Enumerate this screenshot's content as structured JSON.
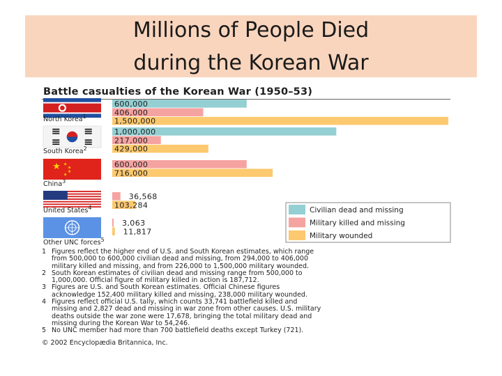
{
  "slide": {
    "title_line1": "Millions of People Died",
    "title_line2": "during the Korean War"
  },
  "chart_data": {
    "type": "bar",
    "orientation": "horizontal",
    "title": "Battle casualties of the Korean War (1950–53)",
    "categories": [
      "North Korea",
      "South Korea",
      "China",
      "United States",
      "Other UNC forces"
    ],
    "category_footnotes": [
      "1",
      "2",
      "3",
      "4",
      "5"
    ],
    "series": [
      {
        "name": "Civilian dead and missing",
        "color": "#93cfd3",
        "values": [
          600000,
          1000000,
          null,
          null,
          null
        ]
      },
      {
        "name": "Military killed and missing",
        "color": "#f5a3a1",
        "values": [
          406000,
          217000,
          600000,
          36568,
          3063
        ]
      },
      {
        "name": "Military wounded",
        "color": "#fcc96f",
        "values": [
          1500000,
          429000,
          716000,
          103284,
          11817
        ]
      }
    ],
    "value_labels": [
      [
        "600,000",
        "406,000",
        "1,500,000"
      ],
      [
        "1,000,000",
        "217,000",
        "429,000"
      ],
      [
        null,
        "600,000",
        "716,000"
      ],
      [
        null,
        "36,568",
        "103,284"
      ],
      [
        null,
        "3,063",
        "11,817"
      ]
    ],
    "legend_position": "bottom-right",
    "grid": false,
    "flag_icons": [
      "north-korea-flag-icon",
      "south-korea-flag-icon",
      "china-flag-icon",
      "united-states-flag-icon",
      "united-nations-flag-icon"
    ]
  },
  "notes": [
    {
      "num": "1",
      "lines": [
        "Figures reflect the higher end of U.S. and South Korean estimates, which range",
        "from 500,000 to 600,000 civilian dead and missing, from 294,000 to 406,000",
        "military killed and missing, and from 226,000 to 1,500,000 military wounded."
      ]
    },
    {
      "num": "2",
      "lines": [
        "South Korean estimates of civilian dead and missing range from 500,000 to",
        "1,000,000. Official figure of military killed in action is 187,712."
      ]
    },
    {
      "num": "3",
      "lines": [
        "Figures are U.S. and South Korean estimates. Official Chinese figures",
        "acknowledge 152,400 military killed and missing, 238,000 military wounded."
      ]
    },
    {
      "num": "4",
      "lines": [
        "Figures reflect official U.S. tally, which counts 33,741 battlefield killed and",
        "missing and 2,827 dead and missing in war zone from other causes. U.S. military",
        "deaths outside the war zone were 17,678, bringing the total military dead and",
        "missing during the Korean War to 54,246."
      ]
    },
    {
      "num": "5",
      "lines": [
        "No UNC member had more than 700 battlefield deaths except Turkey (721)."
      ]
    }
  ],
  "copyright": "© 2002 Encyclopædia Britannica, Inc."
}
